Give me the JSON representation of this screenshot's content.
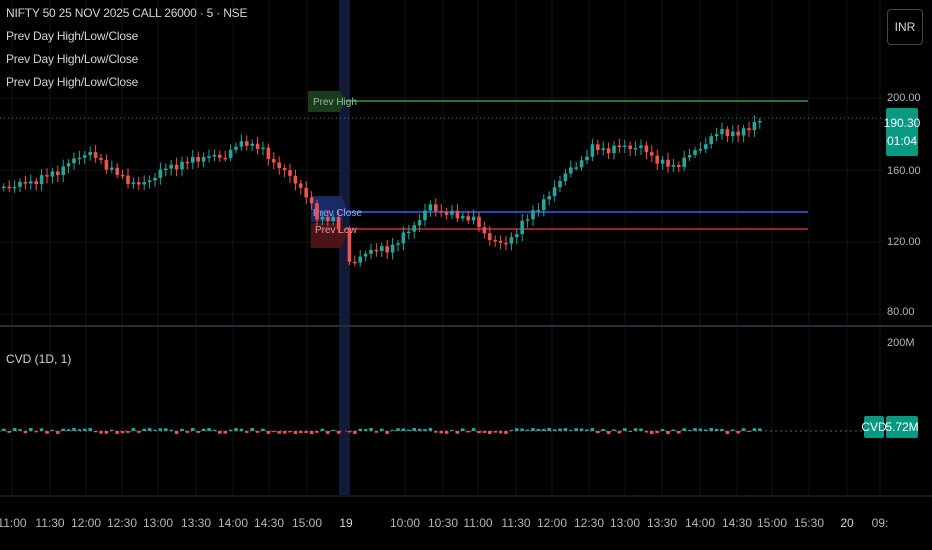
{
  "symbol_title": "NIFTY 50 25 NOV 2025 CALL 26000 · 5 · NSE",
  "indicator_legends": [
    "Prev Day High/Low/Close",
    "Prev Day High/Low/Close",
    "Prev Day High/Low/Close"
  ],
  "currency_button": "INR",
  "price_axis": {
    "labels": [
      "200.00",
      "160.00",
      "120.00",
      "80.00"
    ]
  },
  "last_price": {
    "value": "190.30",
    "countdown": "01:04"
  },
  "levels": {
    "prev_high_label": "Prev High",
    "prev_close_label": "Prev Close",
    "prev_low_label": "Prev Low"
  },
  "cvd_pane": {
    "title": "CVD (1D, 1)",
    "axis_label": "200M",
    "badge_name": "CVD",
    "badge_value": "5.72M"
  },
  "time_axis": {
    "labels": [
      "11:00",
      "11:30",
      "12:00",
      "12:30",
      "13:00",
      "13:30",
      "14:00",
      "14:30",
      "15:00",
      "19",
      "10:00",
      "10:30",
      "11:00",
      "11:30",
      "12:00",
      "12:30",
      "13:00",
      "13:30",
      "14:00",
      "14:30",
      "15:00",
      "15:30",
      "20",
      "09:"
    ]
  },
  "colors": {
    "up": "#26a69a",
    "down": "#ef5350",
    "prev_high": "#4caf50",
    "prev_close": "#2962ff",
    "prev_low": "#f23645",
    "badge": "#089981"
  }
}
